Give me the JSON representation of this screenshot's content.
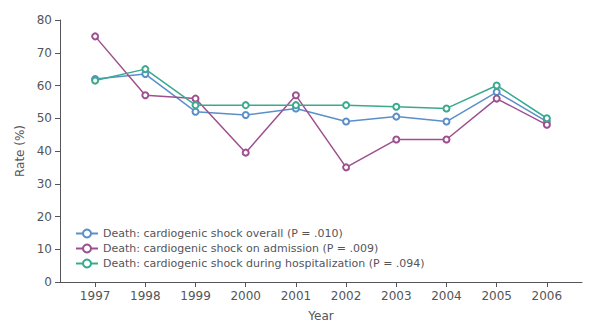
{
  "chart_data": {
    "type": "line",
    "xlabel": "Year",
    "ylabel": "Rate (%)",
    "x": [
      1997,
      1998,
      1999,
      2000,
      2001,
      2002,
      2003,
      2004,
      2005,
      2006
    ],
    "series": [
      {
        "name": "Death: cardiogenic shock overall (P = .010)",
        "color": "#5b8fc9",
        "marker": "circle",
        "values": [
          62.0,
          63.5,
          52.0,
          51.0,
          53.0,
          49.0,
          50.5,
          49.0,
          58.0,
          49.0
        ]
      },
      {
        "name": "Death: cardiogenic shock on admission (P = .009)",
        "color": "#9e4f8e",
        "marker": "circle",
        "values": [
          75.0,
          57.0,
          56.0,
          39.5,
          57.0,
          35.0,
          43.5,
          43.5,
          56.0,
          48.0
        ]
      },
      {
        "name": "Death: cardiogenic shock during hospitalization (P = .094)",
        "color": "#3aaa8e",
        "marker": "circle",
        "values": [
          61.5,
          65.0,
          54.0,
          54.0,
          54.0,
          54.0,
          53.5,
          53.0,
          60.0,
          50.0
        ]
      }
    ],
    "xlim": [
      1996.3,
      2006.7
    ],
    "xticks": [
      1997,
      1998,
      1999,
      2000,
      2001,
      2002,
      2003,
      2004,
      2005,
      2006
    ],
    "ylim": [
      0,
      80
    ],
    "yticks": [
      0,
      10,
      20,
      30,
      40,
      50,
      60,
      70,
      80
    ],
    "grid": false,
    "legend": "lower left"
  }
}
